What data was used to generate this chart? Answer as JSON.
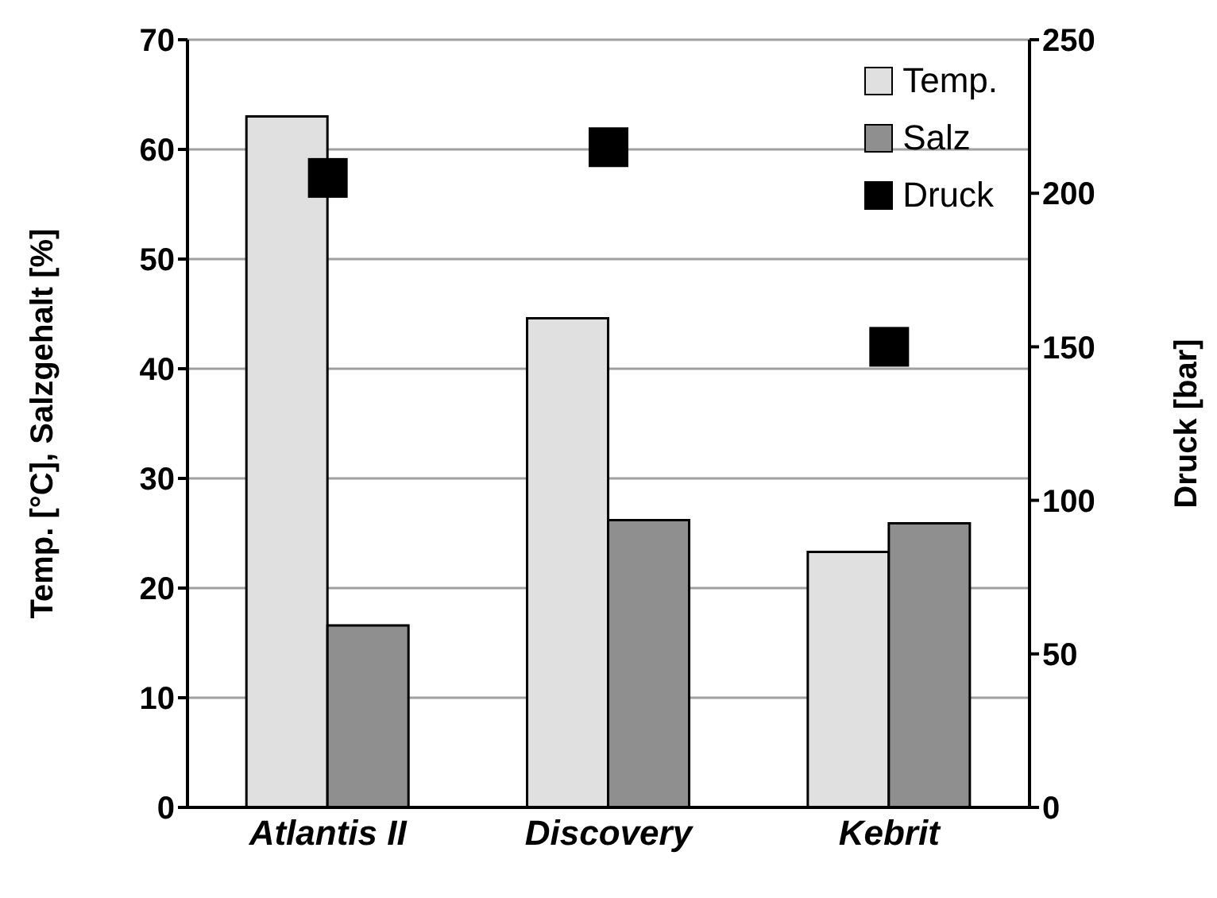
{
  "chart_data": {
    "type": "bar",
    "categories": [
      "Atlantis II",
      "Discovery",
      "Kebrit"
    ],
    "series": [
      {
        "name": "Temp.",
        "color": "#e0e0e0",
        "values": [
          63,
          44.6,
          23.3
        ]
      },
      {
        "name": "Salz",
        "color": "#8f8f8f",
        "values": [
          16.6,
          26.2,
          25.9
        ]
      },
      {
        "name": "Druck",
        "type": "scatter",
        "axis": "y2",
        "color": "#000000",
        "marker": "square",
        "values": [
          205,
          215,
          150
        ]
      }
    ],
    "ylabel": "Temp. [°C], Salzgehalt [%]",
    "y2label": "Druck [bar]",
    "ylim": [
      0,
      70
    ],
    "yticks": [
      0,
      10,
      20,
      30,
      40,
      50,
      60,
      70
    ],
    "y2lim": [
      0,
      250
    ],
    "y2ticks": [
      0,
      50,
      100,
      150,
      200,
      250
    ],
    "grid": "y",
    "legend": "top right"
  }
}
